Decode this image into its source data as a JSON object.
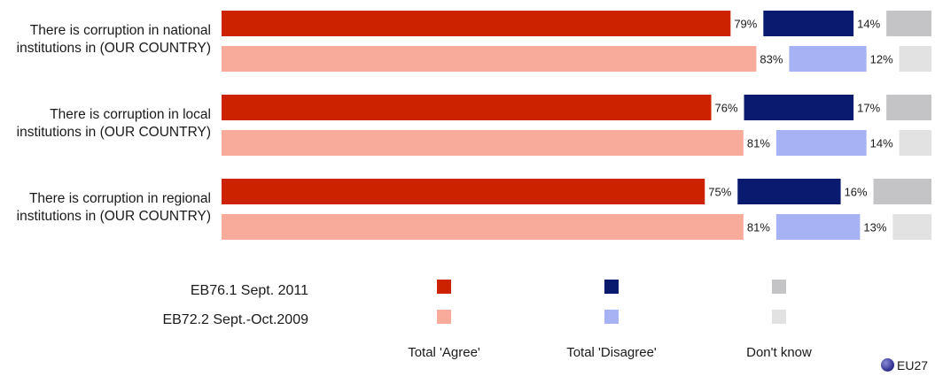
{
  "chart_data": {
    "type": "bar",
    "orientation": "horizontal",
    "stacked": true,
    "categories": [
      "There is corruption in national institutions in (OUR COUNTRY)",
      "There is corruption in local institutions in (OUR COUNTRY)",
      "There is corruption in regional institutions in (OUR COUNTRY)"
    ],
    "category_lines": [
      [
        "There is corruption in national",
        "institutions in (OUR COUNTRY)"
      ],
      [
        "There is corruption in local",
        "institutions in (OUR COUNTRY)"
      ],
      [
        "There is corruption in regional",
        "institutions in (OUR COUNTRY)"
      ]
    ],
    "waves": [
      {
        "name": "EB76.1 Sept. 2011",
        "agree": [
          79,
          76,
          75
        ],
        "disagree": [
          14,
          17,
          16
        ],
        "dont_know": [
          7,
          7,
          9
        ]
      },
      {
        "name": "EB72.2 Sept.-Oct.2009",
        "agree": [
          83,
          81,
          81
        ],
        "disagree": [
          12,
          14,
          13
        ],
        "dont_know": [
          5,
          5,
          6
        ]
      }
    ],
    "response_categories": [
      "Total 'Agree'",
      "Total 'Disagree'",
      "Don't know"
    ],
    "value_suffix": "%",
    "colors": {
      "wave1": {
        "agree": "#cc2200",
        "disagree": "#0a1a6e",
        "dont_know": "#c4c4c6"
      },
      "wave2": {
        "agree": "#f9ab9b",
        "disagree": "#a6b2f4",
        "dont_know": "#e2e2e2"
      }
    },
    "legend_position": "bottom",
    "xlim": [
      0,
      100
    ]
  },
  "footer": {
    "region_label": "EU27"
  }
}
